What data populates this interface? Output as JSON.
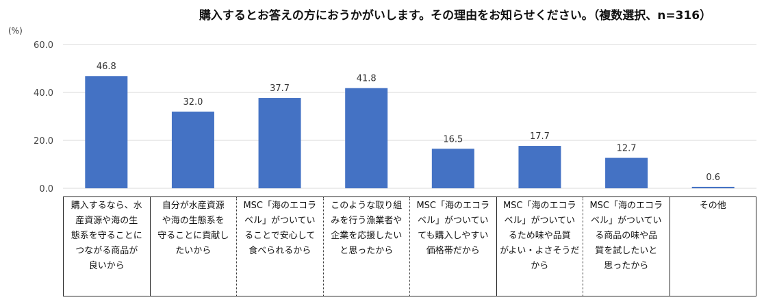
{
  "chart_data": {
    "type": "bar",
    "title": "購入するとお答えの方におうかがいします。その理由をお知らせください。（複数選択、n=316）",
    "ylabel": "(%)",
    "ylim": [
      0,
      60
    ],
    "yticks": [
      "0.0",
      "20.0",
      "40.0",
      "60.0"
    ],
    "grid": true,
    "bar_color": "#4472C4",
    "categories": [
      "購入するなら、水\n産資源や海の生\n態系を守ることに\nつながる商品が\n良いから",
      "自分が水産資源\nや海の生態系を\n守ることに貢献し\nたいから",
      "MSC「海のエコラ\nベル」がついてい\nることで安心して\n食べられるから",
      "このような取り組\nみを行う漁業者や\n企業を応援したい\nと思ったから",
      "MSC「海のエコラ\nベル」がついてい\nても購入しやすい\n価格帯だから",
      "MSC「海のエコラ\nベル」がついてい\nるため味や品質\nがよい・よさそうだ\nから",
      "MSC「海のエコラ\nベル」がついてい\nる商品の味や品\n質を試したいと\n思ったから",
      "その他"
    ],
    "values": [
      46.8,
      32.0,
      37.7,
      41.8,
      16.5,
      17.7,
      12.7,
      0.6
    ],
    "value_labels": [
      "46.8",
      "32.0",
      "37.7",
      "41.8",
      "16.5",
      "17.7",
      "12.7",
      "0.6"
    ]
  }
}
